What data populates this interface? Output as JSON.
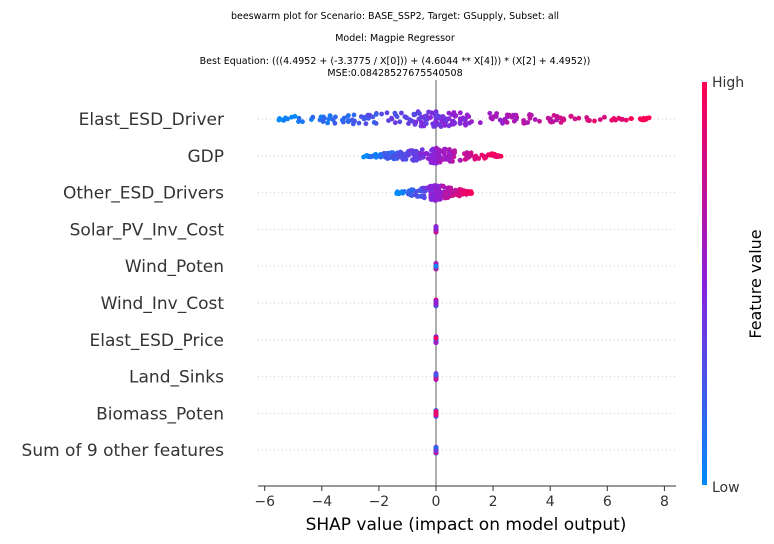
{
  "title_lines": [
    "beeswarm plot for Scenario: BASE_SSP2, Target: GSupply, Subset: all",
    "Model: Magpie Regressor",
    "Best Equation: (((4.4952 + (-3.3775 / X[0])) + (4.6044 ** X[4])) * (X[2] + 4.4952))",
    "MSE:0.08428527675540508"
  ],
  "colors": {
    "low": "#008afb",
    "high": "#ff0052",
    "mid": "#8b22d9",
    "axis": "#333333",
    "zero_line": "#999999",
    "row_line": "#cccccc"
  },
  "chart_data": {
    "type": "scatter",
    "subtype": "shap-beeswarm",
    "xlabel": "SHAP value (impact on model output)",
    "xlim": [
      -6.2,
      8.3
    ],
    "xticks": [
      -6,
      -4,
      -2,
      0,
      2,
      4,
      6,
      8
    ],
    "xtick_labels": [
      "−6",
      "−4",
      "−2",
      "0",
      "2",
      "4",
      "6",
      "8"
    ],
    "colorbar": {
      "title": "Feature value",
      "low_label": "Low",
      "high_label": "High"
    },
    "features": [
      {
        "name": "Elast_ESD_Driver",
        "min": -5.7,
        "max": 7.6,
        "n": 230
      },
      {
        "name": "GDP",
        "min": -2.6,
        "max": 2.3,
        "n": 200
      },
      {
        "name": "Other_ESD_Drivers",
        "min": -1.4,
        "max": 1.3,
        "n": 170
      },
      {
        "name": "Solar_PV_Inv_Cost",
        "min": 0,
        "max": 0,
        "n": 60
      },
      {
        "name": "Wind_Poten",
        "min": 0,
        "max": 0,
        "n": 60
      },
      {
        "name": "Wind_Inv_Cost",
        "min": 0,
        "max": 0,
        "n": 60
      },
      {
        "name": "Elast_ESD_Price",
        "min": 0,
        "max": 0,
        "n": 60
      },
      {
        "name": "Land_Sinks",
        "min": 0,
        "max": 0,
        "n": 60
      },
      {
        "name": "Biomass_Poten",
        "min": 0,
        "max": 0,
        "n": 60
      },
      {
        "name": "Sum of 9 other features",
        "min": 0,
        "max": 0,
        "n": 60
      }
    ]
  }
}
